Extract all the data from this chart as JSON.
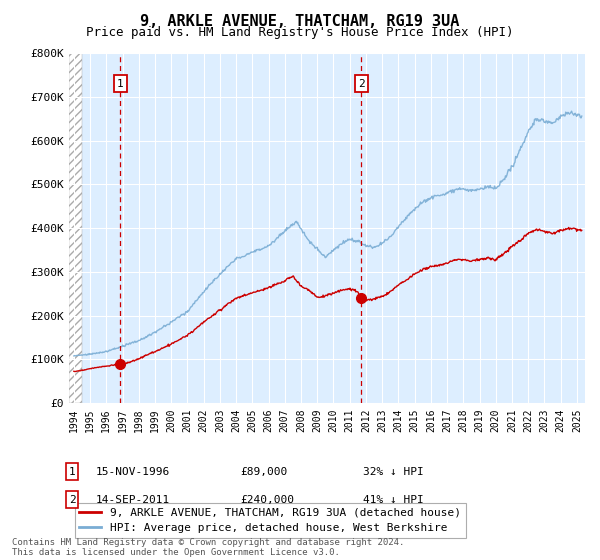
{
  "title": "9, ARKLE AVENUE, THATCHAM, RG19 3UA",
  "subtitle": "Price paid vs. HM Land Registry's House Price Index (HPI)",
  "ylim": [
    0,
    800000
  ],
  "xlim_start": 1993.7,
  "xlim_end": 2025.5,
  "yticks": [
    0,
    100000,
    200000,
    300000,
    400000,
    500000,
    600000,
    700000,
    800000
  ],
  "ytick_labels": [
    "£0",
    "£100K",
    "£200K",
    "£300K",
    "£400K",
    "£500K",
    "£600K",
    "£700K",
    "£800K"
  ],
  "xticks": [
    1994,
    1995,
    1996,
    1997,
    1998,
    1999,
    2000,
    2001,
    2002,
    2003,
    2004,
    2005,
    2006,
    2007,
    2008,
    2009,
    2010,
    2011,
    2012,
    2013,
    2014,
    2015,
    2016,
    2017,
    2018,
    2019,
    2020,
    2021,
    2022,
    2023,
    2024,
    2025
  ],
  "sale1_x": 1996.87,
  "sale1_y": 89000,
  "sale1_label": "1",
  "sale1_date": "15-NOV-1996",
  "sale1_price": "£89,000",
  "sale1_hpi": "32% ↓ HPI",
  "sale2_x": 2011.71,
  "sale2_y": 240000,
  "sale2_label": "2",
  "sale2_date": "14-SEP-2011",
  "sale2_price": "£240,000",
  "sale2_hpi": "41% ↓ HPI",
  "red_color": "#cc0000",
  "blue_color": "#7aadd4",
  "bg_color": "#ddeeff",
  "hatch_end": 1994.5,
  "title_fontsize": 11,
  "subtitle_fontsize": 9.5,
  "legend_label_red": "9, ARKLE AVENUE, THATCHAM, RG19 3UA (detached house)",
  "legend_label_blue": "HPI: Average price, detached house, West Berkshire",
  "footnote": "Contains HM Land Registry data © Crown copyright and database right 2024.\nThis data is licensed under the Open Government Licence v3.0."
}
